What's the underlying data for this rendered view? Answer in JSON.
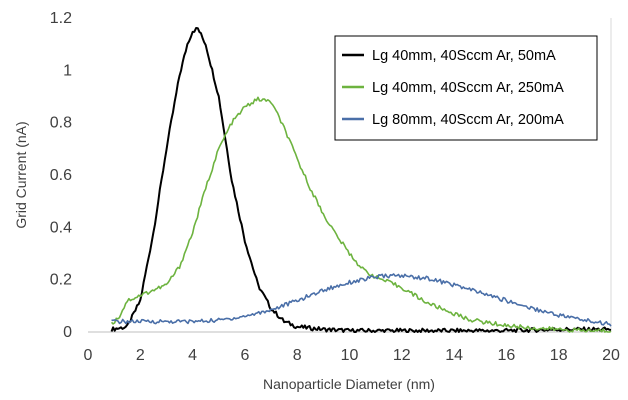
{
  "chart_data": {
    "type": "line",
    "title": "",
    "xlabel": "Nanoparticle Diameter (nm)",
    "ylabel": "Grid Current (nA)",
    "xlim": [
      0,
      20
    ],
    "ylim": [
      0,
      1.2
    ],
    "xticks": [
      0,
      2,
      4,
      6,
      8,
      10,
      12,
      14,
      16,
      18,
      20
    ],
    "yticks": [
      0,
      0.2,
      0.4,
      0.6,
      0.8,
      1,
      1.2
    ],
    "xtick_labels": [
      "0",
      "2",
      "4",
      "6",
      "8",
      "10",
      "12",
      "14",
      "16",
      "18",
      "20"
    ],
    "ytick_labels": [
      "0",
      "0.2",
      "0.4",
      "0.6",
      "0.8",
      "1",
      "1.2"
    ],
    "grid": false,
    "legend_position": "top-right",
    "series": [
      {
        "name": "Lg 40mm, 40Sccm Ar, 50mA",
        "color": "#000000",
        "points": [
          [
            0.9,
            0.01
          ],
          [
            1.5,
            0.02
          ],
          [
            2.0,
            0.12
          ],
          [
            2.5,
            0.38
          ],
          [
            3.0,
            0.7
          ],
          [
            3.5,
            0.98
          ],
          [
            3.8,
            1.1
          ],
          [
            4.0,
            1.15
          ],
          [
            4.2,
            1.16
          ],
          [
            4.5,
            1.1
          ],
          [
            5.0,
            0.9
          ],
          [
            5.5,
            0.58
          ],
          [
            6.0,
            0.35
          ],
          [
            6.5,
            0.18
          ],
          [
            7.0,
            0.09
          ],
          [
            7.5,
            0.04
          ],
          [
            8.0,
            0.02
          ],
          [
            9.0,
            0.01
          ],
          [
            10.0,
            0.005
          ],
          [
            12.0,
            0.005
          ],
          [
            14.0,
            0.005
          ],
          [
            16.0,
            0.005
          ],
          [
            18.0,
            0.01
          ],
          [
            20.0,
            0.01
          ]
        ]
      },
      {
        "name": "Lg 40mm, 40Sccm Ar, 250mA",
        "color": "#6DB33F",
        "points": [
          [
            0.9,
            0.03
          ],
          [
            1.2,
            0.06
          ],
          [
            1.5,
            0.12
          ],
          [
            2.0,
            0.14
          ],
          [
            3.0,
            0.18
          ],
          [
            3.5,
            0.25
          ],
          [
            4.0,
            0.38
          ],
          [
            4.5,
            0.55
          ],
          [
            5.0,
            0.7
          ],
          [
            5.5,
            0.8
          ],
          [
            6.0,
            0.86
          ],
          [
            6.5,
            0.89
          ],
          [
            7.0,
            0.88
          ],
          [
            7.5,
            0.78
          ],
          [
            8.0,
            0.66
          ],
          [
            8.5,
            0.55
          ],
          [
            9.0,
            0.45
          ],
          [
            9.5,
            0.37
          ],
          [
            10.0,
            0.3
          ],
          [
            10.5,
            0.24
          ],
          [
            11.0,
            0.21
          ],
          [
            11.5,
            0.19
          ],
          [
            12.0,
            0.17
          ],
          [
            12.5,
            0.14
          ],
          [
            13.0,
            0.11
          ],
          [
            13.5,
            0.09
          ],
          [
            14.0,
            0.07
          ],
          [
            14.5,
            0.05
          ],
          [
            15.0,
            0.04
          ],
          [
            16.0,
            0.025
          ],
          [
            17.0,
            0.015
          ],
          [
            18.0,
            0.01
          ],
          [
            19.0,
            0.005
          ],
          [
            20.0,
            0.005
          ]
        ]
      },
      {
        "name": "Lg 80mm, 40Sccm Ar, 200mA",
        "color": "#4A6FA8",
        "points": [
          [
            0.9,
            0.04
          ],
          [
            2.0,
            0.04
          ],
          [
            3.0,
            0.04
          ],
          [
            4.0,
            0.04
          ],
          [
            5.0,
            0.045
          ],
          [
            6.0,
            0.06
          ],
          [
            7.0,
            0.085
          ],
          [
            8.0,
            0.12
          ],
          [
            9.0,
            0.16
          ],
          [
            10.0,
            0.19
          ],
          [
            11.0,
            0.21
          ],
          [
            11.5,
            0.215
          ],
          [
            12.0,
            0.215
          ],
          [
            13.0,
            0.205
          ],
          [
            14.0,
            0.18
          ],
          [
            15.0,
            0.15
          ],
          [
            16.0,
            0.12
          ],
          [
            17.0,
            0.09
          ],
          [
            18.0,
            0.065
          ],
          [
            19.0,
            0.045
          ],
          [
            20.0,
            0.03
          ]
        ]
      }
    ]
  }
}
